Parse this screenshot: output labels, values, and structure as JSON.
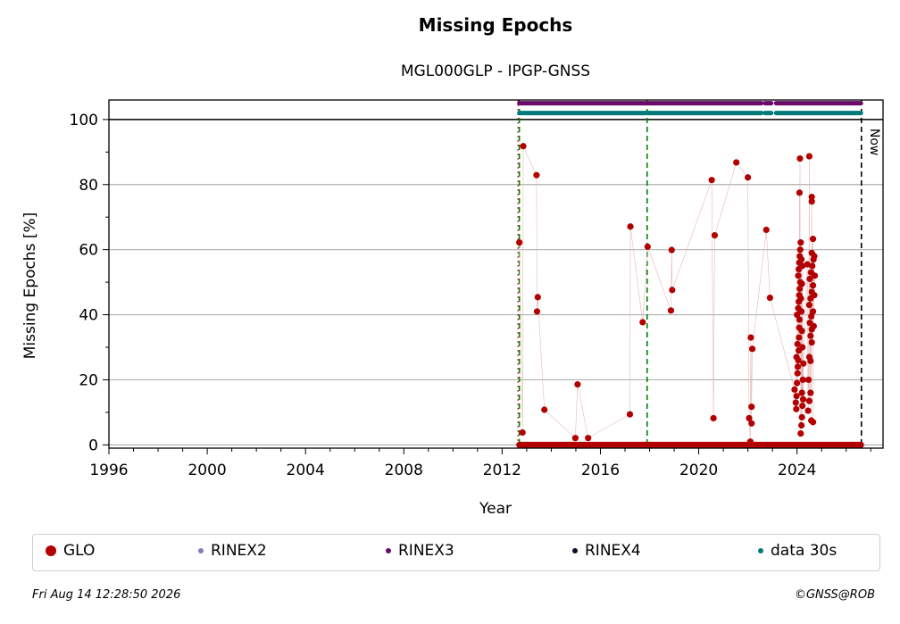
{
  "title": "Missing Epochs",
  "subtitle": "MGL000GLP - IPGP-GNSS",
  "footer": {
    "timestamp": "Fri Aug 14 12:28:50 2026",
    "copyright": "©GNSS@ROB"
  },
  "now_label": "Now",
  "legend": [
    {
      "label": "GLO",
      "color": "#b30000",
      "icon": "large-dot"
    },
    {
      "label": "RINEX2",
      "color": "#7f7fbf",
      "icon": "small-dot"
    },
    {
      "label": "RINEX3",
      "color": "#6a0a6a",
      "icon": "small-dot"
    },
    {
      "label": "RINEX4",
      "color": "#1a0a2a",
      "icon": "small-dot"
    },
    {
      "label": "data 30s",
      "color": "#007a7a",
      "icon": "small-dot"
    }
  ],
  "colors": {
    "glo": "#b30000",
    "rinex3": "#6a0a6a",
    "data30s": "#007a7a",
    "grid": "#b0b0b0",
    "equipment_change": "#008000"
  },
  "chart_data": {
    "type": "scatter",
    "xlabel": "Year",
    "ylabel": "Missing Epochs [%]",
    "xlim": [
      1996,
      2027.5
    ],
    "ylim": [
      -1,
      106
    ],
    "xticks": [
      1996,
      2000,
      2004,
      2008,
      2012,
      2016,
      2020,
      2024
    ],
    "yticks": [
      0,
      20,
      40,
      60,
      80,
      100
    ],
    "grid": "horizontal",
    "legend_position": "bottom",
    "now_date": 2026.62,
    "equipment_changes": [
      2012.7,
      2017.9
    ],
    "series": [
      {
        "name": "GLO",
        "baseline_zero_range": [
          2012.7,
          2026.6
        ],
        "points": [
          [
            2012.7,
            62.2
          ],
          [
            2012.86,
            91.8
          ],
          [
            2012.83,
            3.8
          ],
          [
            2013.4,
            82.9
          ],
          [
            2013.45,
            45.4
          ],
          [
            2013.42,
            41.0
          ],
          [
            2013.72,
            10.8
          ],
          [
            2014.98,
            2.1
          ],
          [
            2015.07,
            18.6
          ],
          [
            2015.5,
            2.1
          ],
          [
            2017.22,
            67.1
          ],
          [
            2017.2,
            9.4
          ],
          [
            2017.72,
            37.7
          ],
          [
            2017.92,
            60.9
          ],
          [
            2018.9,
            59.9
          ],
          [
            2018.92,
            47.6
          ],
          [
            2018.87,
            41.3
          ],
          [
            2020.53,
            81.4
          ],
          [
            2020.6,
            8.2
          ],
          [
            2020.65,
            64.4
          ],
          [
            2021.53,
            86.8
          ],
          [
            2022.0,
            82.2
          ],
          [
            2022.05,
            8.2
          ],
          [
            2022.15,
            6.6
          ],
          [
            2022.15,
            11.7
          ],
          [
            2022.12,
            33.0
          ],
          [
            2022.18,
            29.5
          ],
          [
            2022.1,
            1.0
          ],
          [
            2022.75,
            66.1
          ],
          [
            2022.9,
            45.2
          ],
          [
            2023.9,
            17.0
          ],
          [
            2023.95,
            13.0
          ],
          [
            2023.97,
            11.0
          ],
          [
            2023.98,
            15.0
          ],
          [
            2024.0,
            19.0
          ],
          [
            2024.02,
            22.0
          ],
          [
            2024.03,
            24.0
          ],
          [
            2024.05,
            26.0
          ],
          [
            2024.07,
            29.0
          ],
          [
            2024.08,
            33.0
          ],
          [
            2024.09,
            36.0
          ],
          [
            2024.1,
            38.5
          ],
          [
            2024.05,
            42.0
          ],
          [
            2024.07,
            44.0
          ],
          [
            2024.09,
            46.0
          ],
          [
            2024.11,
            48.0
          ],
          [
            2024.13,
            50.0
          ],
          [
            2024.05,
            52.0
          ],
          [
            2024.07,
            54.0
          ],
          [
            2024.09,
            56.0
          ],
          [
            2024.11,
            58.0
          ],
          [
            2024.13,
            60.0
          ],
          [
            2024.15,
            62.2
          ],
          [
            2024.1,
            77.5
          ],
          [
            2024.12,
            88.0
          ],
          [
            2024.15,
            3.5
          ],
          [
            2024.18,
            6.0
          ],
          [
            2024.2,
            8.5
          ],
          [
            2024.22,
            12.0
          ],
          [
            2024.2,
            16.0
          ],
          [
            2024.24,
            20.0
          ],
          [
            2024.26,
            25.0
          ],
          [
            2024.22,
            30.0
          ],
          [
            2024.2,
            35.0
          ],
          [
            2024.18,
            41.0
          ],
          [
            2024.16,
            45.0
          ],
          [
            2024.2,
            49.5
          ],
          [
            2024.22,
            55.0
          ],
          [
            2024.18,
            57.0
          ],
          [
            2024.0,
            40.0
          ],
          [
            2024.02,
            31.0
          ],
          [
            2023.98,
            27.0
          ],
          [
            2024.25,
            14.0
          ],
          [
            2024.5,
            88.7
          ],
          [
            2024.6,
            76.2
          ],
          [
            2024.6,
            74.8
          ],
          [
            2024.65,
            63.3
          ],
          [
            2024.45,
            10.5
          ],
          [
            2024.5,
            13.5
          ],
          [
            2024.55,
            16.0
          ],
          [
            2024.58,
            7.5
          ],
          [
            2024.65,
            7.0
          ],
          [
            2024.5,
            27.0
          ],
          [
            2024.55,
            25.8
          ],
          [
            2024.6,
            31.5
          ],
          [
            2024.55,
            33.5
          ],
          [
            2024.6,
            35.5
          ],
          [
            2024.52,
            37.5
          ],
          [
            2024.58,
            39.5
          ],
          [
            2024.65,
            41.0
          ],
          [
            2024.5,
            43.0
          ],
          [
            2024.55,
            45.0
          ],
          [
            2024.6,
            47.0
          ],
          [
            2024.65,
            49.0
          ],
          [
            2024.52,
            51.0
          ],
          [
            2024.57,
            53.0
          ],
          [
            2024.62,
            55.0
          ],
          [
            2024.67,
            57.0
          ],
          [
            2024.6,
            59.0
          ],
          [
            2024.7,
            58.0
          ],
          [
            2024.72,
            52.0
          ],
          [
            2024.7,
            46.0
          ],
          [
            2024.68,
            36.5
          ],
          [
            2024.47,
            20.0
          ],
          [
            2024.42,
            55.5
          ]
        ]
      },
      {
        "name": "RINEX3",
        "level": 105,
        "ranges": [
          [
            2012.7,
            2017.9
          ],
          [
            2017.95,
            2022.55
          ],
          [
            2022.7,
            2022.95
          ],
          [
            2023.15,
            2026.6
          ]
        ]
      },
      {
        "name": "data 30s",
        "level": 102,
        "ranges": [
          [
            2012.7,
            2017.9
          ],
          [
            2017.95,
            2022.55
          ],
          [
            2022.7,
            2022.95
          ],
          [
            2023.15,
            2026.6
          ]
        ]
      }
    ]
  }
}
